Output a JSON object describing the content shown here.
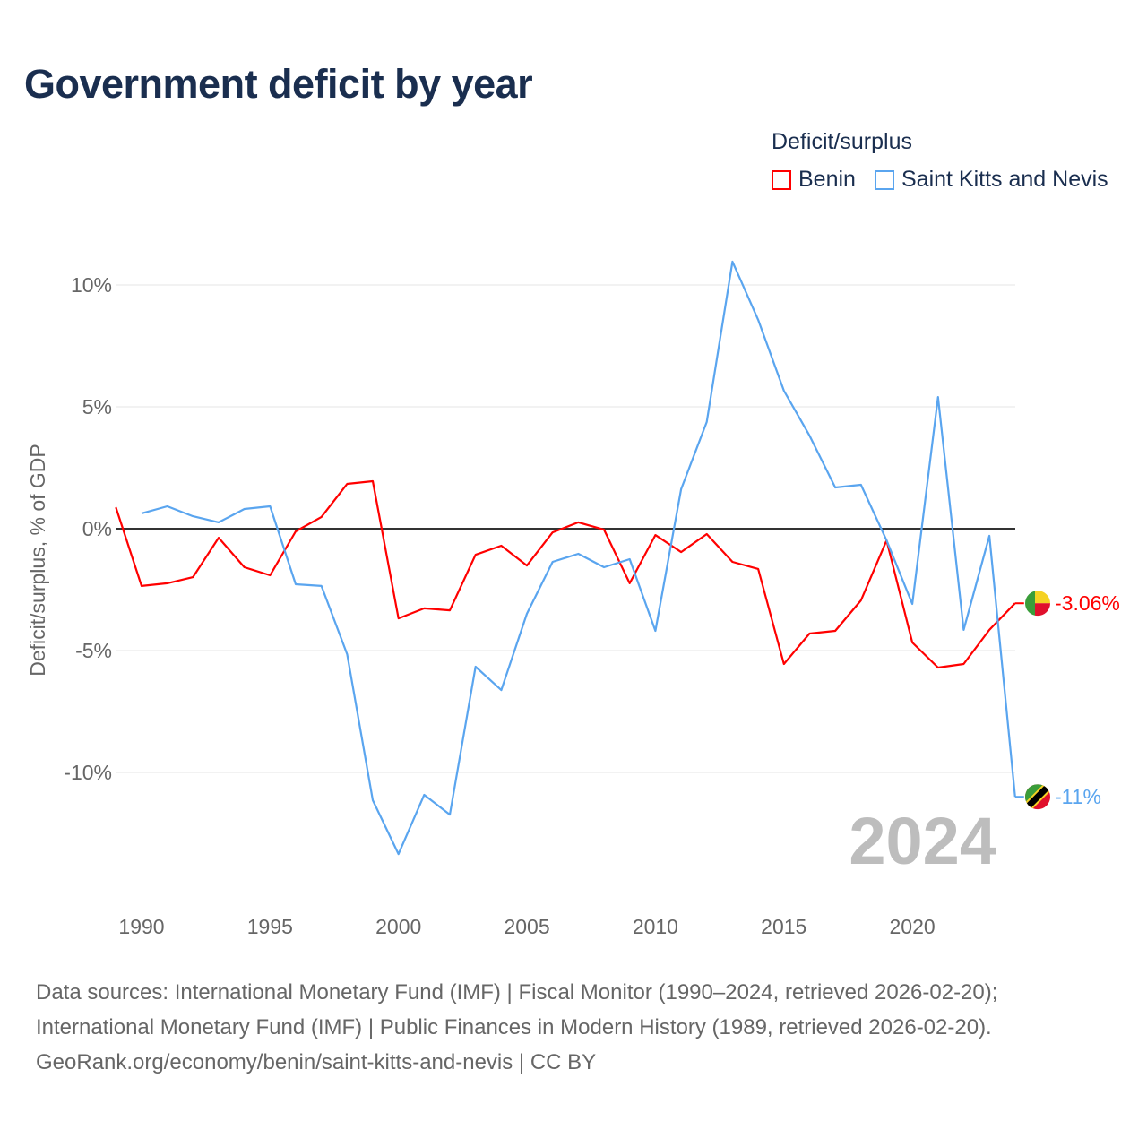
{
  "title": "Government deficit by year",
  "chart_data": {
    "type": "line",
    "title": "Government deficit by year",
    "ylabel": "Deficit/surplus, % of GDP",
    "xlabel": "",
    "legend_title": "Deficit/surplus",
    "legend_position": "top-right",
    "ylim": [
      -15,
      11
    ],
    "xlim": [
      1989,
      2024
    ],
    "yticks": [
      10,
      5,
      0,
      -5,
      -10
    ],
    "ytick_labels": [
      "10%",
      "5%",
      "0%",
      "-5%",
      "-10%"
    ],
    "xticks": [
      1990,
      1995,
      2000,
      2005,
      2010,
      2015,
      2020
    ],
    "xtick_labels": [
      "1990",
      "1995",
      "2000",
      "2005",
      "2010",
      "2015",
      "2020"
    ],
    "grid": true,
    "year_watermark": "2024",
    "series": [
      {
        "name": "Benin",
        "color": "#ff0000",
        "end_label": "-3.06%",
        "x": [
          1989,
          1990,
          1991,
          1992,
          1993,
          1994,
          1995,
          1996,
          1997,
          1998,
          1999,
          2000,
          2001,
          2002,
          2003,
          2004,
          2005,
          2006,
          2007,
          2008,
          2009,
          2010,
          2011,
          2012,
          2013,
          2014,
          2015,
          2016,
          2017,
          2018,
          2019,
          2020,
          2021,
          2022,
          2023,
          2024
        ],
        "values": [
          0.88,
          -2.35,
          -2.24,
          -1.99,
          -0.37,
          -1.58,
          -1.91,
          -0.11,
          0.48,
          1.84,
          1.95,
          -3.68,
          -3.27,
          -3.35,
          -1.07,
          -0.7,
          -1.51,
          -0.15,
          0.26,
          -0.04,
          -2.24,
          -0.26,
          -0.96,
          -0.22,
          -1.36,
          -1.65,
          -5.55,
          -4.3,
          -4.19,
          -2.94,
          -0.48,
          -4.67,
          -5.7,
          -5.55,
          -4.15,
          -3.06
        ]
      },
      {
        "name": "Saint Kitts and Nevis",
        "color": "#5aa5ef",
        "end_label": "-11%",
        "x": [
          1990,
          1991,
          1992,
          1993,
          1994,
          1995,
          1996,
          1997,
          1998,
          1999,
          2000,
          2001,
          2002,
          2003,
          2004,
          2005,
          2006,
          2007,
          2008,
          2009,
          2010,
          2011,
          2012,
          2013,
          2014,
          2015,
          2016,
          2017,
          2018,
          2019,
          2020,
          2021,
          2022,
          2023,
          2024
        ],
        "values": [
          0.63,
          0.92,
          0.51,
          0.26,
          0.81,
          0.92,
          -2.28,
          -2.35,
          -5.15,
          -11.14,
          -13.35,
          -10.92,
          -11.73,
          -5.66,
          -6.62,
          -3.49,
          -1.36,
          -1.03,
          -1.58,
          -1.25,
          -4.19,
          1.62,
          4.38,
          10.96,
          8.57,
          5.66,
          3.82,
          1.69,
          1.8,
          -0.48,
          -3.09,
          5.4,
          -4.15,
          -0.29,
          -11.0
        ]
      }
    ]
  },
  "footer": [
    "Data sources: International Monetary Fund (IMF) | Fiscal Monitor (1990–2024, retrieved 2026-02-20);",
    "International Monetary Fund (IMF) | Public Finances in Modern History (1989, retrieved 2026-02-20).",
    "GeoRank.org/economy/benin/saint-kitts-and-nevis | CC BY"
  ]
}
